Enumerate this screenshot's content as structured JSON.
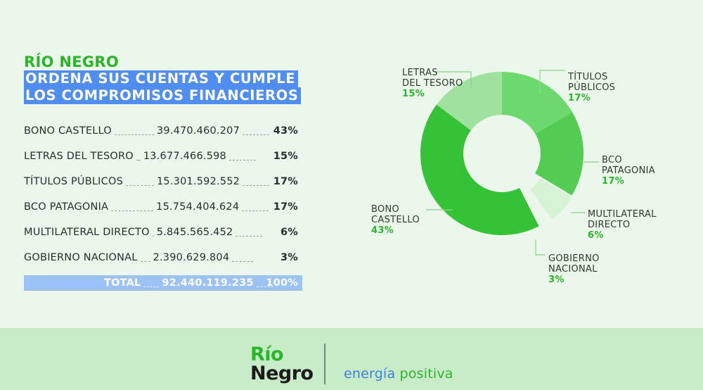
{
  "header": {
    "kicker": "RÍO NEGRO",
    "title_lines": [
      "ORDENA SUS CUENTAS Y CUMPLE",
      "LOS COMPROMISOS FINANCIEROS"
    ]
  },
  "table": {
    "rows": [
      {
        "label": "BONO CASTELLO",
        "amount": "39.470.460.207",
        "pct": "43%"
      },
      {
        "label": "LETRAS DEL TESORO",
        "amount": "13.677.466.598",
        "pct": "15%"
      },
      {
        "label": "TÍTULOS PÚBLICOS",
        "amount": "15.301.592.552",
        "pct": "17%"
      },
      {
        "label": "BCO PATAGONIA",
        "amount": "15.754.404.624",
        "pct": "17%"
      },
      {
        "label": "MULTILATERAL DIRECTO",
        "amount": "5.845.565.452",
        "pct": "6%"
      },
      {
        "label": "GOBIERNO NACIONAL",
        "amount": "2.390.629.804",
        "pct": "3%"
      }
    ],
    "total": {
      "label": "TOTAL",
      "amount": "92.440.119.235",
      "pct": "100%"
    }
  },
  "chart_data": {
    "type": "pie",
    "variant": "donut",
    "labels": [
      "TÍTULOS PÚBLICOS",
      "BCO PATAGONIA",
      "MULTILATERAL DIRECTO",
      "GOBIERNO NACIONAL",
      "BONO CASTELLO",
      "LETRAS DEL TESORO"
    ],
    "display_labels": [
      "TÍTULOS\nPÚBLICOS",
      "BCO\nPATAGONIA",
      "MULTILATERAL\nDIRECTO",
      "GOBIERNO\nNACIONAL",
      "BONO\nCASTELLO",
      "LETRAS\nDEL TESORO"
    ],
    "values": [
      15301592552,
      15754404624,
      5845565452,
      2390629804,
      39470460207,
      13677466598
    ],
    "percent_labels": [
      "17%",
      "17%",
      "6%",
      "3%",
      "43%",
      "15%"
    ],
    "colors": [
      "#6dd86d",
      "#54cc54",
      "#d6f3d6",
      "#eaf7ea",
      "#36c236",
      "#9fe29f"
    ],
    "start": "top, clockwise",
    "legend": "none"
  },
  "footer": {
    "logo_line1": "Río",
    "logo_line2": "Negro",
    "tagline_part1": "energía",
    "tagline_part2": "positiva"
  },
  "colors": {
    "background": "#eaf7ea",
    "accent_green": "#2bb52b",
    "accent_blue": "#4f8ef0",
    "footer_band": "#c8ecc8"
  }
}
